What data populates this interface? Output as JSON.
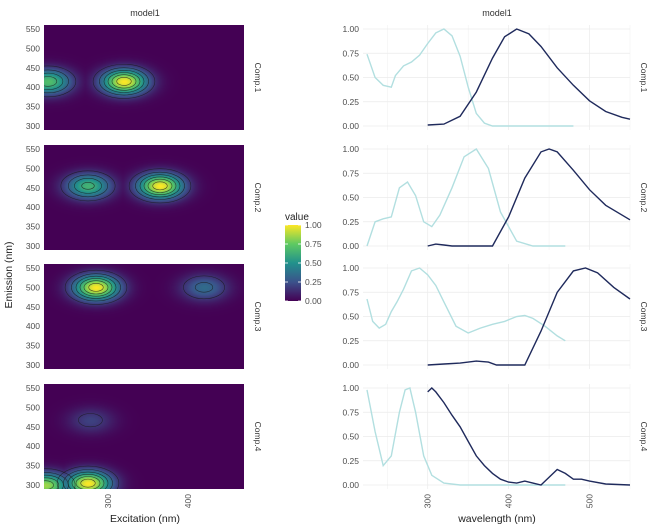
{
  "colors": {
    "viridis": [
      "#440154",
      "#3b528b",
      "#21918c",
      "#5ec962",
      "#fde725"
    ],
    "excitation_line": "#b2dfe0",
    "emission_line": "#1f2a5c",
    "grid": "#ebebeb",
    "contour": "#1a1a1a"
  },
  "chart_data": [
    {
      "type": "heatmap",
      "title": "model1",
      "xlabel": "Excitation (nm)",
      "ylabel": "Emission (nm)",
      "xlim": [
        220,
        470
      ],
      "ylim": [
        290,
        560
      ],
      "x_ticks": [
        300,
        400
      ],
      "y_ticks": [
        300,
        350,
        400,
        450,
        500,
        550
      ],
      "legend": {
        "title": "value",
        "range": [
          0,
          1
        ],
        "ticks": [
          "0.00",
          "0.25",
          "0.50",
          "0.75",
          "1.00"
        ]
      },
      "panels": [
        {
          "name": "Comp.1",
          "peaks": [
            {
              "ex": 320,
              "em": 415,
              "value": 1.0
            },
            {
              "ex": 225,
              "em": 415,
              "value": 0.7
            }
          ]
        },
        {
          "name": "Comp.2",
          "peaks": [
            {
              "ex": 365,
              "em": 455,
              "value": 1.0
            },
            {
              "ex": 275,
              "em": 455,
              "value": 0.65
            }
          ]
        },
        {
          "name": "Comp.3",
          "peaks": [
            {
              "ex": 285,
              "em": 500,
              "value": 1.0
            },
            {
              "ex": 420,
              "em": 500,
              "value": 0.35
            }
          ]
        },
        {
          "name": "Comp.4",
          "peaks": [
            {
              "ex": 275,
              "em": 305,
              "value": 1.0
            },
            {
              "ex": 222,
              "em": 300,
              "value": 0.85
            },
            {
              "ex": 278,
              "em": 467,
              "value": 0.2
            }
          ]
        }
      ]
    },
    {
      "type": "line",
      "title": "model1",
      "xlabel": "wavelength (nm)",
      "ylabel": "",
      "xlim": [
        220,
        550
      ],
      "ylim": [
        0,
        1
      ],
      "x_ticks": [
        300,
        400,
        500
      ],
      "y_ticks": [
        "0.00",
        "0.25",
        "0.50",
        "0.75",
        "1.00"
      ],
      "panels": [
        {
          "name": "Comp.1",
          "excitation": {
            "x": [
              225,
              235,
              245,
              255,
              260,
              270,
              280,
              290,
              300,
              310,
              320,
              330,
              340,
              350,
              360,
              370,
              380,
              400,
              420,
              450,
              470,
              480
            ],
            "y": [
              0.74,
              0.5,
              0.42,
              0.4,
              0.52,
              0.62,
              0.66,
              0.73,
              0.85,
              0.96,
              1.0,
              0.93,
              0.72,
              0.4,
              0.13,
              0.03,
              0.0,
              0.0,
              0.0,
              0.0,
              0.0,
              0.0
            ]
          },
          "emission": {
            "x": [
              300,
              320,
              340,
              360,
              380,
              395,
              410,
              425,
              440,
              460,
              480,
              500,
              520,
              540,
              550
            ],
            "y": [
              0.01,
              0.02,
              0.1,
              0.35,
              0.7,
              0.92,
              1.0,
              0.95,
              0.82,
              0.6,
              0.42,
              0.26,
              0.15,
              0.09,
              0.07
            ]
          }
        },
        {
          "name": "Comp.2",
          "excitation": {
            "x": [
              225,
              235,
              245,
              255,
              265,
              275,
              285,
              295,
              305,
              315,
              330,
              345,
              360,
              375,
              390,
              410,
              430,
              450,
              470
            ],
            "y": [
              0.0,
              0.25,
              0.28,
              0.3,
              0.6,
              0.66,
              0.52,
              0.25,
              0.2,
              0.32,
              0.6,
              0.92,
              1.0,
              0.8,
              0.35,
              0.05,
              0.0,
              0.0,
              0.0
            ]
          },
          "emission": {
            "x": [
              300,
              310,
              320,
              330,
              340,
              360,
              380,
              400,
              420,
              440,
              450,
              460,
              480,
              500,
              520,
              550
            ],
            "y": [
              0.0,
              0.02,
              0.01,
              0.0,
              0.0,
              0.0,
              0.0,
              0.3,
              0.7,
              0.97,
              1.0,
              0.97,
              0.78,
              0.58,
              0.42,
              0.27
            ]
          }
        },
        {
          "name": "Comp.3",
          "excitation": {
            "x": [
              225,
              232,
              240,
              248,
              255,
              262,
              270,
              280,
              290,
              300,
              310,
              320,
              335,
              350,
              365,
              380,
              395,
              410,
              420,
              430,
              445,
              460,
              470
            ],
            "y": [
              0.68,
              0.45,
              0.38,
              0.42,
              0.55,
              0.65,
              0.78,
              0.97,
              1.0,
              0.93,
              0.82,
              0.65,
              0.4,
              0.33,
              0.38,
              0.42,
              0.45,
              0.5,
              0.51,
              0.48,
              0.4,
              0.3,
              0.25
            ]
          },
          "emission": {
            "x": [
              300,
              320,
              340,
              360,
              375,
              385,
              400,
              420,
              440,
              460,
              480,
              495,
              510,
              530,
              550
            ],
            "y": [
              0.0,
              0.01,
              0.02,
              0.04,
              0.03,
              0.0,
              0.0,
              0.0,
              0.35,
              0.75,
              0.97,
              1.0,
              0.95,
              0.8,
              0.68
            ]
          }
        },
        {
          "name": "Comp.4",
          "excitation": {
            "x": [
              225,
              235,
              245,
              255,
              265,
              272,
              278,
              285,
              295,
              305,
              320,
              340,
              360,
              380,
              400,
              420,
              450,
              470
            ],
            "y": [
              0.98,
              0.55,
              0.2,
              0.3,
              0.75,
              0.98,
              1.0,
              0.75,
              0.3,
              0.1,
              0.02,
              0.0,
              0.0,
              0.0,
              0.0,
              0.0,
              0.0,
              0.0
            ]
          },
          "emission": {
            "x": [
              300,
              305,
              310,
              320,
              330,
              340,
              350,
              360,
              370,
              380,
              390,
              400,
              410,
              420,
              430,
              440,
              450,
              460,
              470,
              480,
              490,
              500,
              520,
              550
            ],
            "y": [
              0.96,
              1.0,
              0.96,
              0.85,
              0.72,
              0.6,
              0.45,
              0.3,
              0.2,
              0.12,
              0.06,
              0.03,
              0.02,
              0.04,
              0.02,
              0.0,
              0.08,
              0.16,
              0.12,
              0.06,
              0.06,
              0.04,
              0.01,
              0.0
            ]
          }
        }
      ]
    }
  ]
}
